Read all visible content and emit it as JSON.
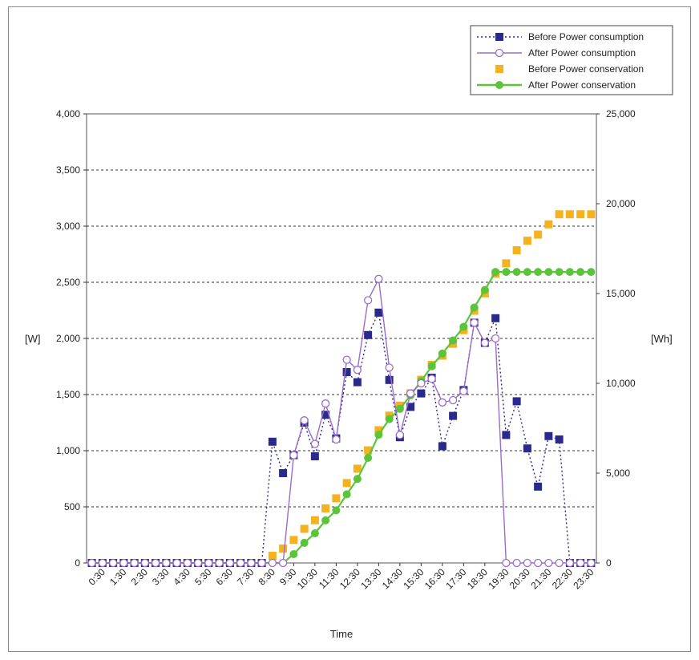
{
  "chart_data": {
    "type": "line",
    "x_label": "Time",
    "y_left_label": "[W]",
    "y_right_label": "[Wh]",
    "y_left_ticks": [
      "0",
      "500",
      "1,000",
      "1,500",
      "2,000",
      "2,500",
      "3,000",
      "3,500",
      "4,000"
    ],
    "y_right_ticks": [
      "0",
      "5,000",
      "10,000",
      "15,000",
      "20,000",
      "25,000"
    ],
    "y_left_range": [
      0,
      4000
    ],
    "y_right_range": [
      0,
      25000
    ],
    "grid": "horizontal dotted",
    "legend_position": "top-right",
    "x_tick_labels": [
      "0:30",
      "1:30",
      "2:30",
      "3:30",
      "4:30",
      "5:30",
      "6:30",
      "7:30",
      "8:30",
      "9:30",
      "10:30",
      "11:30",
      "12:30",
      "13:30",
      "14:30",
      "15:30",
      "16:30",
      "17:30",
      "18:30",
      "19:30",
      "20:30",
      "21:30",
      "22:30",
      "23:30"
    ],
    "x": [
      "0:00",
      "0:30",
      "1:00",
      "1:30",
      "2:00",
      "2:30",
      "3:00",
      "3:30",
      "4:00",
      "4:30",
      "5:00",
      "5:30",
      "6:00",
      "6:30",
      "7:00",
      "7:30",
      "8:00",
      "8:30",
      "9:00",
      "9:30",
      "10:00",
      "10:30",
      "11:00",
      "11:30",
      "12:00",
      "12:30",
      "13:00",
      "13:30",
      "14:00",
      "14:30",
      "15:00",
      "15:30",
      "16:00",
      "16:30",
      "17:00",
      "17:30",
      "18:00",
      "18:30",
      "19:00",
      "19:30",
      "20:00",
      "20:30",
      "21:00",
      "21:30",
      "22:00",
      "22:30",
      "23:00",
      "23:30"
    ],
    "series": [
      {
        "name": "Before Power consumption",
        "axis": "left",
        "color": "#2a2a8c",
        "marker": "filled-square",
        "line": "dotted",
        "values": [
          0,
          0,
          0,
          0,
          0,
          0,
          0,
          0,
          0,
          0,
          0,
          0,
          0,
          0,
          0,
          0,
          0,
          1080,
          800,
          960,
          1250,
          950,
          1320,
          1110,
          1700,
          1610,
          2030,
          2230,
          1630,
          1120,
          1390,
          1510,
          1650,
          1040,
          1310,
          1540,
          2140,
          1960,
          2180,
          1140,
          1440,
          1020,
          680,
          1130,
          1100,
          0,
          0,
          0
        ]
      },
      {
        "name": "After   Power consumption",
        "axis": "left",
        "color": "#9b6cc9",
        "marker": "open-circle",
        "line": "solid",
        "values": [
          0,
          0,
          0,
          0,
          0,
          0,
          0,
          0,
          0,
          0,
          0,
          0,
          0,
          0,
          0,
          0,
          0,
          0,
          0,
          960,
          1270,
          1060,
          1420,
          1100,
          1810,
          1720,
          2340,
          2530,
          1740,
          1140,
          1510,
          1600,
          1640,
          1430,
          1450,
          1530,
          2140,
          1960,
          2000,
          0,
          0,
          0,
          0,
          0,
          0,
          0,
          0,
          0
        ]
      },
      {
        "name": "Before Power conservation",
        "axis": "right",
        "color": "#f4b21e",
        "marker": "filled-square",
        "line": "none",
        "values": [
          0,
          0,
          0,
          0,
          0,
          0,
          0,
          0,
          0,
          0,
          0,
          0,
          0,
          0,
          0,
          0,
          0,
          400,
          800,
          1280,
          1900,
          2380,
          3040,
          3600,
          4450,
          5250,
          6270,
          7390,
          8200,
          8760,
          9450,
          10200,
          11030,
          11540,
          12200,
          12960,
          14040,
          15010,
          16100,
          16680,
          17410,
          17940,
          18280,
          18850,
          19410,
          19410,
          19410,
          19410
        ]
      },
      {
        "name": "After   Power conservation",
        "axis": "right",
        "color": "#5cc43c",
        "marker": "filled-circle",
        "line": "solid",
        "values": [
          0,
          0,
          0,
          0,
          0,
          0,
          0,
          0,
          0,
          0,
          0,
          0,
          0,
          0,
          0,
          0,
          0,
          0,
          0,
          490,
          1120,
          1650,
          2370,
          2930,
          3820,
          4680,
          5850,
          7140,
          8010,
          8580,
          9330,
          10130,
          10950,
          11660,
          12390,
          13150,
          14220,
          15200,
          16200,
          16200,
          16200,
          16200,
          16200,
          16200,
          16200,
          16200,
          16200,
          16200
        ]
      }
    ]
  }
}
